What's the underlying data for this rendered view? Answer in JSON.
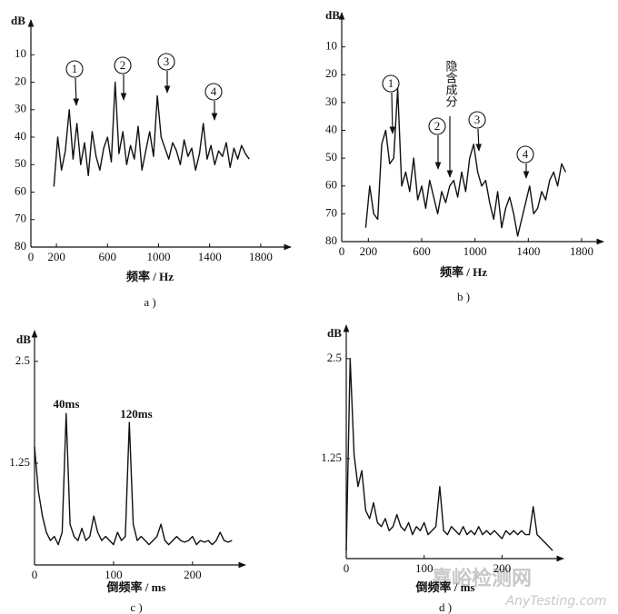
{
  "chart_data": [
    {
      "type": "line",
      "y_label": "dB",
      "x_label": "频率 / Hz",
      "panel_label": "a )",
      "color": "#111111",
      "xlim": [
        0,
        2000
      ],
      "ylim": [
        80,
        0
      ],
      "xticks": [
        0,
        200,
        600,
        1000,
        1400,
        1800
      ],
      "yticks": [
        10,
        20,
        30,
        40,
        50,
        60,
        70,
        80
      ],
      "x": [
        180,
        210,
        240,
        270,
        300,
        330,
        360,
        390,
        420,
        450,
        480,
        510,
        540,
        570,
        600,
        630,
        660,
        690,
        720,
        750,
        780,
        810,
        840,
        870,
        900,
        930,
        960,
        990,
        1020,
        1050,
        1080,
        1110,
        1140,
        1170,
        1200,
        1230,
        1260,
        1290,
        1320,
        1350,
        1380,
        1410,
        1440,
        1470,
        1500,
        1530,
        1560,
        1590,
        1620,
        1650,
        1680,
        1710
      ],
      "values": [
        58,
        40,
        52,
        45,
        30,
        48,
        35,
        50,
        42,
        54,
        38,
        47,
        52,
        44,
        40,
        49,
        20,
        46,
        38,
        50,
        43,
        48,
        36,
        52,
        45,
        38,
        47,
        25,
        40,
        44,
        48,
        42,
        45,
        50,
        41,
        47,
        44,
        52,
        46,
        35,
        48,
        43,
        50,
        45,
        47,
        42,
        51,
        44,
        48,
        43,
        46,
        48
      ],
      "annotations": [
        "1",
        "2",
        "3",
        "4"
      ]
    },
    {
      "type": "line",
      "y_label": "dB",
      "x_label": "频率 / Hz",
      "panel_label": "b )",
      "color": "#111111",
      "xlim": [
        0,
        1950
      ],
      "ylim": [
        80,
        0
      ],
      "xticks": [
        0,
        200,
        600,
        1000,
        1400,
        1800
      ],
      "yticks": [
        10,
        20,
        30,
        40,
        50,
        60,
        70,
        80
      ],
      "x": [
        180,
        210,
        240,
        270,
        300,
        330,
        360,
        390,
        420,
        450,
        480,
        510,
        540,
        570,
        600,
        630,
        660,
        690,
        720,
        750,
        780,
        810,
        840,
        870,
        900,
        930,
        960,
        990,
        1020,
        1050,
        1080,
        1110,
        1140,
        1170,
        1200,
        1230,
        1260,
        1290,
        1320,
        1350,
        1380,
        1410,
        1440,
        1470,
        1500,
        1530,
        1560,
        1590,
        1620,
        1650,
        1680
      ],
      "values": [
        75,
        60,
        70,
        72,
        45,
        40,
        52,
        50,
        25,
        60,
        55,
        62,
        50,
        65,
        60,
        68,
        58,
        64,
        70,
        62,
        66,
        60,
        58,
        64,
        55,
        62,
        50,
        45,
        55,
        60,
        58,
        66,
        72,
        62,
        75,
        68,
        64,
        70,
        78,
        72,
        66,
        60,
        70,
        68,
        62,
        65,
        58,
        55,
        60,
        52,
        55
      ],
      "annotations": [
        "1",
        "2",
        "3",
        "4",
        "隐含成分"
      ]
    },
    {
      "type": "line",
      "y_label": "dB",
      "x_label": "倒频率 / ms",
      "panel_label": "c )",
      "color": "#111111",
      "xlim": [
        0,
        275
      ],
      "ylim": [
        0,
        2.8
      ],
      "xticks": [
        0,
        100,
        200
      ],
      "yticks": [
        1.25,
        2.5
      ],
      "x": [
        0,
        5,
        10,
        15,
        20,
        25,
        30,
        35,
        40,
        45,
        50,
        55,
        60,
        65,
        70,
        75,
        80,
        85,
        90,
        95,
        100,
        105,
        110,
        115,
        120,
        125,
        130,
        135,
        140,
        145,
        150,
        155,
        160,
        165,
        170,
        175,
        180,
        185,
        190,
        195,
        200,
        205,
        210,
        215,
        220,
        225,
        230,
        235,
        240,
        245,
        250
      ],
      "values": [
        1.45,
        0.9,
        0.6,
        0.4,
        0.3,
        0.35,
        0.25,
        0.4,
        1.86,
        0.5,
        0.35,
        0.3,
        0.45,
        0.3,
        0.35,
        0.6,
        0.4,
        0.3,
        0.35,
        0.3,
        0.25,
        0.4,
        0.3,
        0.35,
        1.75,
        0.5,
        0.3,
        0.35,
        0.3,
        0.25,
        0.3,
        0.35,
        0.5,
        0.3,
        0.25,
        0.3,
        0.35,
        0.3,
        0.28,
        0.3,
        0.35,
        0.25,
        0.3,
        0.28,
        0.3,
        0.25,
        0.3,
        0.4,
        0.3,
        0.28,
        0.3
      ],
      "annotations": [
        "40ms",
        "120ms"
      ]
    },
    {
      "type": "line",
      "y_label": "dB",
      "x_label": "倒频率 / ms",
      "panel_label": "d )",
      "color": "#111111",
      "xlim": [
        0,
        280
      ],
      "ylim": [
        0,
        2.85
      ],
      "xticks": [
        0,
        100,
        200
      ],
      "yticks": [
        1.25,
        2.5
      ],
      "x": [
        0,
        5,
        10,
        15,
        20,
        25,
        30,
        35,
        40,
        45,
        50,
        55,
        60,
        65,
        70,
        75,
        80,
        85,
        90,
        95,
        100,
        105,
        110,
        115,
        120,
        125,
        130,
        135,
        140,
        145,
        150,
        155,
        160,
        165,
        170,
        175,
        180,
        185,
        190,
        195,
        200,
        205,
        210,
        215,
        220,
        225,
        230,
        235,
        240,
        245,
        250,
        255,
        260,
        265
      ],
      "values": [
        0.1,
        2.5,
        1.3,
        0.9,
        1.1,
        0.6,
        0.5,
        0.7,
        0.45,
        0.4,
        0.5,
        0.35,
        0.4,
        0.55,
        0.4,
        0.35,
        0.45,
        0.3,
        0.4,
        0.35,
        0.45,
        0.3,
        0.35,
        0.4,
        0.9,
        0.35,
        0.3,
        0.4,
        0.35,
        0.3,
        0.4,
        0.3,
        0.35,
        0.3,
        0.4,
        0.3,
        0.35,
        0.3,
        0.35,
        0.3,
        0.25,
        0.35,
        0.3,
        0.35,
        0.3,
        0.35,
        0.3,
        0.3,
        0.65,
        0.3,
        0.25,
        0.2,
        0.15,
        0.1
      ],
      "annotations": []
    }
  ],
  "watermark": [
    "嘉峪检测网",
    "AnyTesting.com"
  ]
}
